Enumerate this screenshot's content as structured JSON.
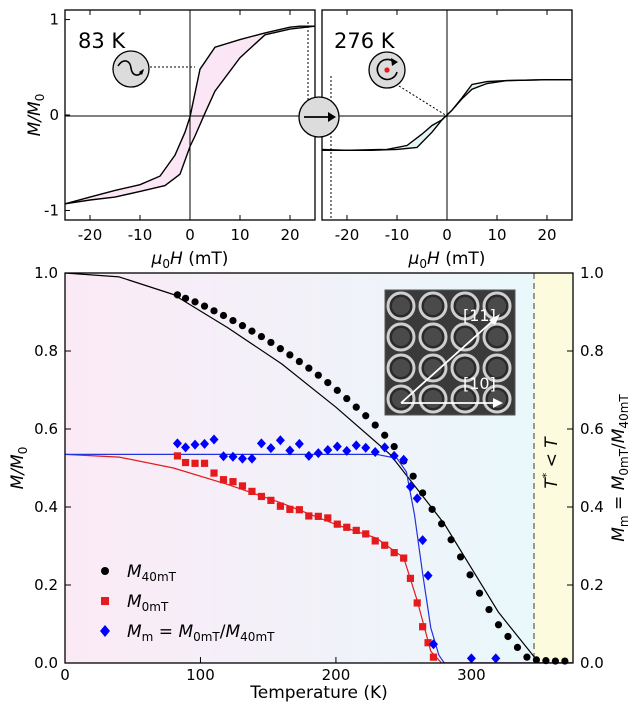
{
  "chart_data": [
    {
      "type": "line",
      "panel": "top-left",
      "annotation": "83 K",
      "xlabel": "μ0H (mT)",
      "ylabel": "M/M0",
      "xlim": [
        -25,
        25
      ],
      "ylim": [
        -1.1,
        1.1
      ],
      "xticks": [
        -20,
        -10,
        0,
        10,
        20
      ],
      "yticks": [
        -1,
        0,
        1
      ],
      "ytick_labels": [
        "-1",
        "0",
        "1"
      ],
      "series": [
        {
          "x": [
            -25,
            -20,
            -15,
            -10,
            -6,
            -3,
            -1,
            0,
            2,
            5,
            10,
            15,
            20,
            22,
            25
          ],
          "y": [
            -0.93,
            -0.86,
            -0.79,
            -0.73,
            -0.64,
            -0.42,
            -0.18,
            -0.02,
            0.48,
            0.71,
            0.79,
            0.86,
            0.92,
            0.93,
            0.93
          ]
        },
        {
          "x": [
            25,
            20,
            15,
            10,
            5,
            3,
            1,
            0,
            -2,
            -5,
            -10,
            -15,
            -20,
            -25
          ],
          "y": [
            0.93,
            0.9,
            0.84,
            0.6,
            0.25,
            0.02,
            -0.22,
            -0.33,
            -0.62,
            -0.74,
            -0.8,
            -0.86,
            -0.89,
            -0.93
          ]
        }
      ],
      "fill_color": "#fbe6f6",
      "icon": "winding-arrow-circle-icon"
    },
    {
      "type": "line",
      "panel": "top-right",
      "annotation": "276 K",
      "xlabel": "μ0H (mT)",
      "xlim": [
        -25,
        25
      ],
      "ylim": [
        -1.1,
        1.1
      ],
      "xticks": [
        -20,
        -10,
        0,
        10,
        20
      ],
      "series": [
        {
          "x": [
            -25,
            -20,
            -15,
            -10,
            -6,
            -3,
            -1,
            0,
            1,
            3,
            5,
            8,
            12,
            20,
            25
          ],
          "y": [
            -0.36,
            -0.37,
            -0.37,
            -0.36,
            -0.34,
            -0.18,
            -0.05,
            0.0,
            0.05,
            0.17,
            0.27,
            0.33,
            0.36,
            0.37,
            0.37
          ]
        },
        {
          "x": [
            25,
            20,
            12,
            8,
            5,
            3,
            1,
            0,
            -1,
            -3,
            -5,
            -8,
            -12,
            -20,
            -25
          ],
          "y": [
            0.37,
            0.37,
            0.36,
            0.35,
            0.32,
            0.18,
            0.05,
            0.0,
            -0.05,
            -0.11,
            -0.2,
            -0.32,
            -0.36,
            -0.37,
            -0.37
          ]
        }
      ],
      "fill_color": "#e3f6f4",
      "icon": "vortex-circle-icon"
    },
    {
      "type": "scatter",
      "panel": "bottom",
      "xlabel": "Temperature (K)",
      "ylabel": "M/M0",
      "ylabel_right": "Mm = M0mT/M40mT",
      "xlim": [
        0,
        375
      ],
      "ylim": [
        0,
        1.0
      ],
      "xticks": [
        0,
        100,
        200,
        300
      ],
      "yticks": [
        0.0,
        0.2,
        0.4,
        0.6,
        0.8,
        1.0
      ],
      "ytick_labels": [
        "0.0",
        "0.2",
        "0.4",
        "0.6",
        "0.8",
        "1.0"
      ],
      "vline_x": 350,
      "vline_label": "T* < T",
      "inset_labels": [
        "[11]",
        "[10]"
      ],
      "legend_position": "bottom-left",
      "series": [
        {
          "name": "M40mT",
          "color": "#000000",
          "marker": "circle",
          "x": [
            83,
            89,
            96,
            103,
            110,
            117,
            124,
            131,
            138,
            145,
            152,
            159,
            166,
            173,
            180,
            187,
            194,
            201,
            208,
            215,
            222,
            229,
            236,
            243,
            250,
            257,
            264,
            271,
            278,
            285,
            292,
            299,
            306,
            313,
            320,
            327,
            334,
            341,
            348,
            355,
            362,
            369
          ],
          "y": [
            0.944,
            0.935,
            0.926,
            0.915,
            0.903,
            0.891,
            0.878,
            0.865,
            0.851,
            0.837,
            0.822,
            0.806,
            0.79,
            0.773,
            0.756,
            0.738,
            0.719,
            0.699,
            0.678,
            0.656,
            0.634,
            0.61,
            0.584,
            0.555,
            0.518,
            0.479,
            0.436,
            0.394,
            0.357,
            0.316,
            0.272,
            0.226,
            0.179,
            0.137,
            0.098,
            0.068,
            0.04,
            0.015,
            0.008,
            0.006,
            0.005,
            0.005
          ]
        },
        {
          "name": "M0mT",
          "color": "#e41a1c",
          "marker": "square",
          "x": [
            83,
            89,
            96,
            103,
            110,
            117,
            124,
            131,
            138,
            145,
            152,
            159,
            166,
            173,
            180,
            187,
            194,
            201,
            208,
            215,
            222,
            229,
            236,
            243,
            250,
            255,
            260,
            264,
            268,
            272
          ],
          "y": [
            0.531,
            0.514,
            0.512,
            0.512,
            0.487,
            0.47,
            0.465,
            0.454,
            0.44,
            0.427,
            0.417,
            0.402,
            0.394,
            0.393,
            0.377,
            0.376,
            0.372,
            0.356,
            0.348,
            0.34,
            0.331,
            0.313,
            0.302,
            0.283,
            0.269,
            0.217,
            0.154,
            0.093,
            0.052,
            0.015
          ]
        },
        {
          "name": "Mm = M0mT/M40mT",
          "color": "#0000ff",
          "marker": "diamond",
          "x": [
            83,
            89,
            96,
            103,
            110,
            117,
            124,
            131,
            138,
            145,
            152,
            159,
            166,
            173,
            180,
            187,
            194,
            201,
            208,
            215,
            222,
            229,
            236,
            243,
            250,
            255,
            260,
            264,
            268,
            272,
            300,
            318
          ],
          "y": [
            0.563,
            0.553,
            0.56,
            0.562,
            0.573,
            0.53,
            0.529,
            0.524,
            0.524,
            0.563,
            0.551,
            0.571,
            0.545,
            0.562,
            0.531,
            0.538,
            0.546,
            0.555,
            0.544,
            0.558,
            0.552,
            0.541,
            0.553,
            0.531,
            0.521,
            0.452,
            0.422,
            0.315,
            0.224,
            0.048,
            0.012,
            0.012
          ]
        }
      ],
      "fits": [
        {
          "color": "#000000",
          "x": [
            0,
            40,
            80,
            120,
            160,
            200,
            240,
            280,
            320,
            350,
            375
          ],
          "y": [
            1.0,
            0.99,
            0.945,
            0.86,
            0.767,
            0.656,
            0.535,
            0.357,
            0.13,
            0.0,
            0.0
          ]
        },
        {
          "color": "#e41a1c",
          "x": [
            0,
            40,
            80,
            120,
            160,
            200,
            230,
            250,
            260,
            270,
            278,
            375
          ],
          "y": [
            0.535,
            0.528,
            0.5,
            0.458,
            0.41,
            0.355,
            0.32,
            0.27,
            0.16,
            0.03,
            0.0,
            0.0
          ]
        },
        {
          "color": "#2233dd",
          "x": [
            0,
            200,
            230,
            245,
            252,
            258,
            264,
            270,
            276,
            280,
            375
          ],
          "y": [
            0.535,
            0.535,
            0.535,
            0.525,
            0.49,
            0.38,
            0.23,
            0.09,
            0.02,
            0.0,
            0.0
          ]
        }
      ],
      "background": {
        "from": "#fbeaf6",
        "to": "#e9f8fb",
        "right_band": "#fcfbde"
      }
    }
  ]
}
